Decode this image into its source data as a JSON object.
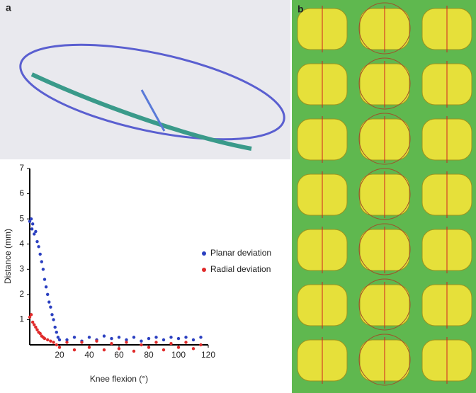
{
  "panel_labels": [
    "a",
    "b"
  ],
  "chart_data": {
    "type": "scatter",
    "xlabel": "Knee flexion (°)",
    "ylabel": "Distance (mm)",
    "xlim": [
      0,
      120
    ],
    "ylim": [
      0,
      7
    ],
    "xticks": [
      20,
      40,
      60,
      80,
      100,
      120
    ],
    "yticks": [
      1,
      2,
      3,
      4,
      5,
      6,
      7
    ],
    "legend": "right",
    "series": [
      {
        "name": "Planar deviation",
        "color": "#2a3fc0",
        "x": [
          0,
          1,
          1.5,
          2,
          3,
          4,
          5,
          6,
          7,
          8,
          9,
          10,
          11,
          12,
          13,
          14,
          15,
          16,
          17,
          18,
          19,
          20,
          25,
          30,
          35,
          40,
          45,
          50,
          55,
          60,
          65,
          70,
          75,
          80,
          85,
          90,
          95,
          100,
          105,
          110,
          115
        ],
        "values": [
          4.9,
          5.0,
          4.6,
          4.8,
          4.4,
          4.5,
          4.1,
          3.9,
          3.6,
          3.3,
          3.0,
          2.6,
          2.3,
          2.0,
          1.7,
          1.5,
          1.2,
          1.0,
          0.7,
          0.5,
          0.3,
          0.2,
          0.2,
          0.3,
          0.15,
          0.3,
          0.2,
          0.35,
          0.25,
          0.3,
          0.2,
          0.3,
          0.15,
          0.25,
          0.3,
          0.2,
          0.3,
          0.25,
          0.3,
          0.2,
          0.3
        ]
      },
      {
        "name": "Radial deviation",
        "color": "#e02a2a",
        "x": [
          0,
          1,
          2,
          3,
          4,
          5,
          6,
          7,
          8,
          9,
          10,
          12,
          14,
          16,
          18,
          20,
          25,
          30,
          35,
          40,
          45,
          50,
          55,
          60,
          65,
          70,
          75,
          80,
          85,
          90,
          95,
          100,
          105,
          110,
          115
        ],
        "values": [
          1.1,
          1.2,
          0.9,
          0.8,
          0.7,
          0.6,
          0.5,
          0.45,
          0.35,
          0.3,
          0.25,
          0.2,
          0.15,
          0.1,
          0.0,
          -0.1,
          0.1,
          -0.2,
          0.1,
          -0.1,
          0.15,
          -0.2,
          0.05,
          -0.15,
          0.1,
          -0.25,
          0.0,
          -0.1,
          0.1,
          -0.2,
          0.05,
          -0.1,
          0.1,
          -0.15,
          0.0
        ]
      }
    ]
  }
}
